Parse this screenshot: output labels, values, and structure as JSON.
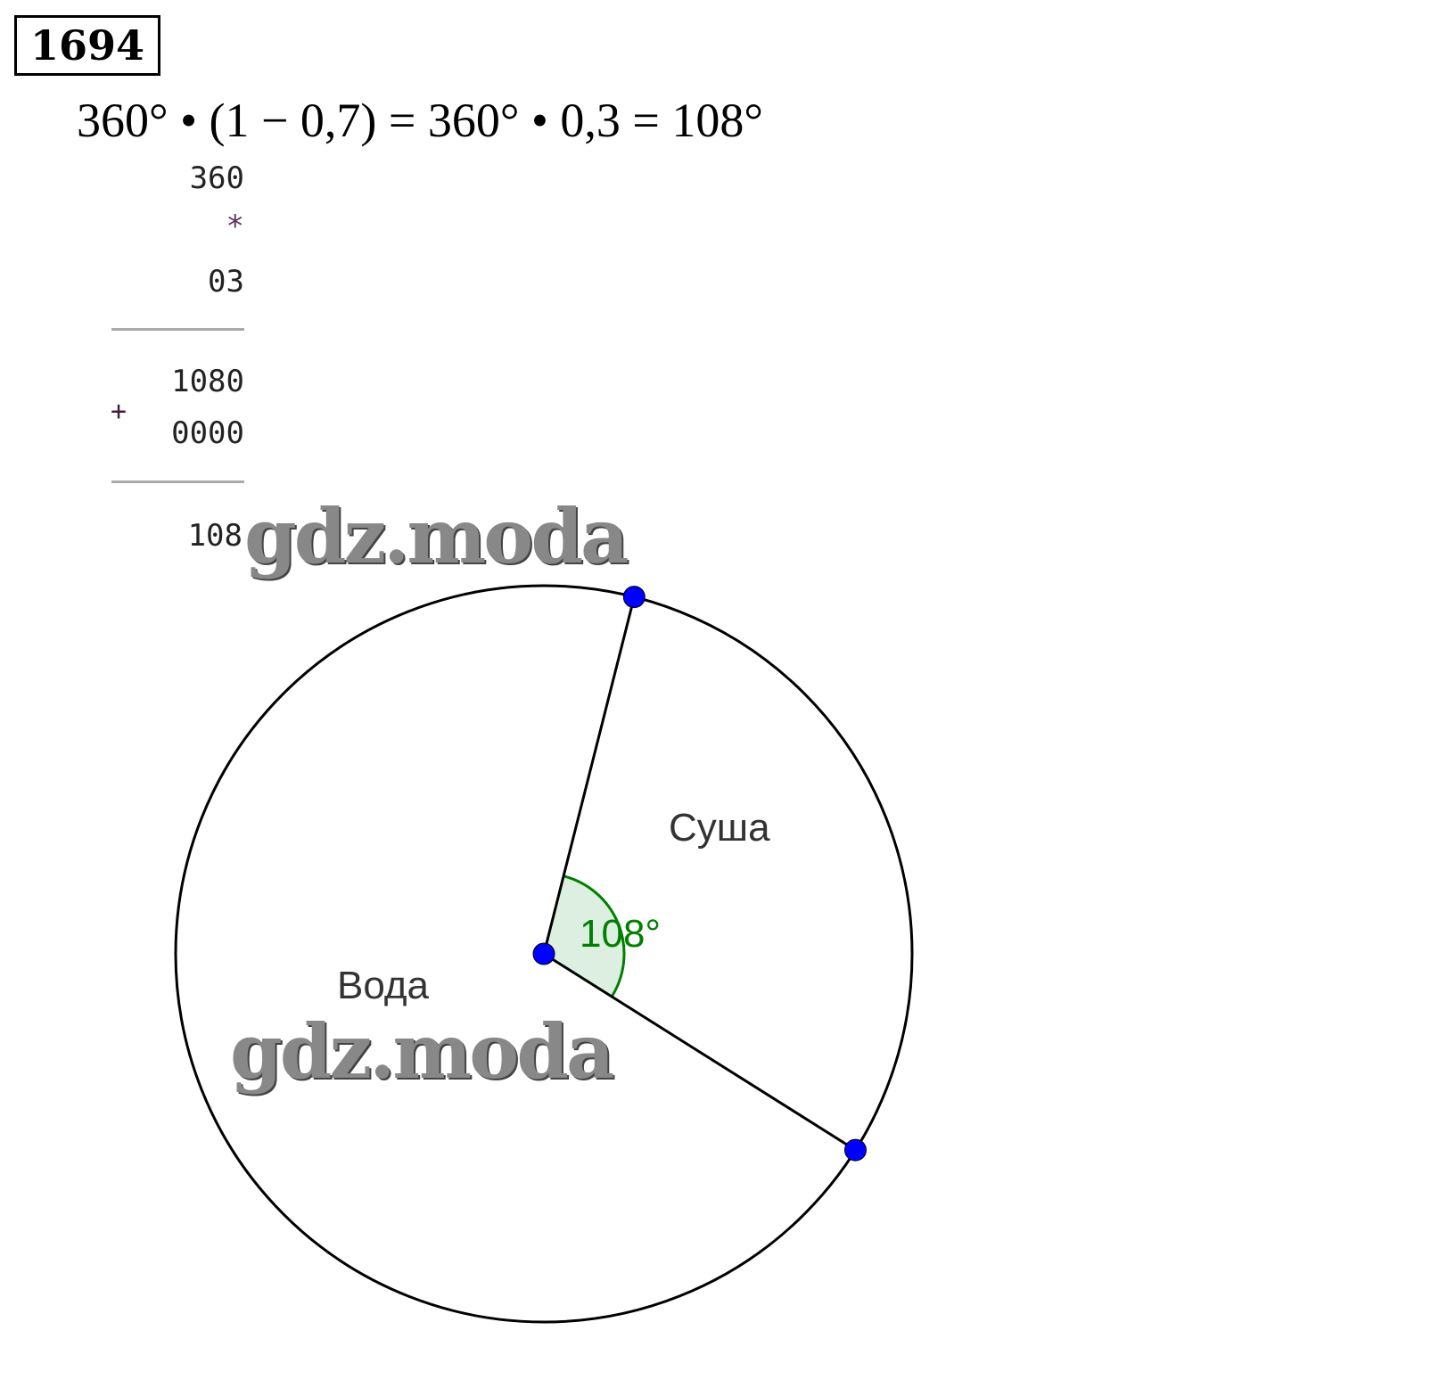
{
  "problem_number": "1694",
  "equation": "360° • (1 − 0,7) =  360° • 0,3 = 108°",
  "column_multiplication": {
    "multiplicand": "360",
    "operator": "*",
    "multiplier": "03",
    "partial1": "1080",
    "plus": "+",
    "partial2": "0000",
    "result": "108"
  },
  "watermark": "gdz.moda",
  "diagram": {
    "sectors": [
      {
        "label": "Суша",
        "angle_deg": 108
      },
      {
        "label": "Вода",
        "angle_deg": 252
      }
    ],
    "angle_label": "108°",
    "colors": {
      "circle": "#000000",
      "points": "#0000ff",
      "angle": "#008000",
      "angle_fill": "#dcefe0"
    }
  }
}
